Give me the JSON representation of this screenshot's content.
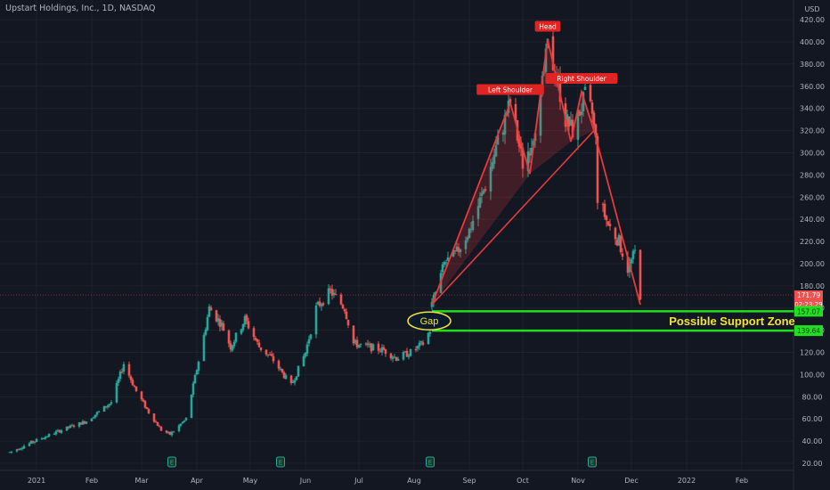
{
  "header": {
    "title": "Upstart Holdings, Inc., 1D, NASDAQ",
    "currency": "USD"
  },
  "colors": {
    "background": "#131722",
    "grid": "#1e222d",
    "up": "#26a69a",
    "down": "#ef5350",
    "pattern": "#e83a3a",
    "zone": "#22dd22",
    "zone_label": "#f0e33c",
    "axis_text": "#b2b5be"
  },
  "chart_data": {
    "type": "candlestick",
    "title": "Upstart Holdings, Inc., 1D, NASDAQ",
    "y_ticks": [
      20,
      40,
      60,
      80,
      100,
      120,
      140,
      160,
      180,
      200,
      220,
      240,
      260,
      280,
      300,
      320,
      340,
      360,
      380,
      400,
      420
    ],
    "ylim": [
      14,
      432
    ],
    "x_ticks": [
      "2021",
      "Feb",
      "Mar",
      "Apr",
      "May",
      "Jun",
      "Jul",
      "Aug",
      "Sep",
      "Oct",
      "Nov",
      "Dec",
      "2022",
      "Feb"
    ],
    "price_path": [
      [
        "2020-12-17",
        30
      ],
      [
        "2020-12-31",
        40
      ],
      [
        "2021-01-15",
        50
      ],
      [
        "2021-01-29",
        58
      ],
      [
        "2021-02-12",
        75
      ],
      [
        "2021-02-19",
        110
      ],
      [
        "2021-02-26",
        85
      ],
      [
        "2021-03-05",
        66
      ],
      [
        "2021-03-12",
        50
      ],
      [
        "2021-03-17",
        46
      ],
      [
        "2021-03-26",
        60
      ],
      [
        "2021-04-05",
        135
      ],
      [
        "2021-04-08",
        160
      ],
      [
        "2021-04-15",
        145
      ],
      [
        "2021-04-20",
        125
      ],
      [
        "2021-04-28",
        150
      ],
      [
        "2021-05-06",
        125
      ],
      [
        "2021-05-13",
        115
      ],
      [
        "2021-05-24",
        90
      ],
      [
        "2021-06-01",
        120
      ],
      [
        "2021-06-07",
        160
      ],
      [
        "2021-06-15",
        175
      ],
      [
        "2021-06-23",
        160
      ],
      [
        "2021-06-28",
        128
      ],
      [
        "2021-07-06",
        125
      ],
      [
        "2021-07-15",
        122
      ],
      [
        "2021-07-22",
        115
      ],
      [
        "2021-07-30",
        120
      ],
      [
        "2021-08-06",
        128
      ],
      [
        "2021-08-10",
        140
      ],
      [
        "2021-08-11",
        163
      ],
      [
        "2021-08-18",
        200
      ],
      [
        "2021-08-25",
        210
      ],
      [
        "2021-09-01",
        230
      ],
      [
        "2021-09-10",
        270
      ],
      [
        "2021-09-17",
        310
      ],
      [
        "2021-09-24",
        345
      ],
      [
        "2021-10-01",
        290
      ],
      [
        "2021-10-06",
        310
      ],
      [
        "2021-10-12",
        360
      ],
      [
        "2021-10-15",
        395
      ],
      [
        "2021-10-20",
        370
      ],
      [
        "2021-10-25",
        330
      ],
      [
        "2021-10-29",
        320
      ],
      [
        "2021-11-05",
        350
      ],
      [
        "2021-11-09",
        335
      ],
      [
        "2021-11-11",
        310
      ],
      [
        "2021-11-12",
        260
      ],
      [
        "2021-11-18",
        235
      ],
      [
        "2021-11-24",
        220
      ],
      [
        "2021-11-29",
        195
      ],
      [
        "2021-12-03",
        210
      ],
      [
        "2021-12-06",
        171.79
      ]
    ],
    "earnings_markers": [
      {
        "date": "2021-03-18",
        "label": "E"
      },
      {
        "date": "2021-05-18",
        "label": "E"
      },
      {
        "date": "2021-08-10",
        "label": "E"
      },
      {
        "date": "2021-11-09",
        "label": "E"
      }
    ],
    "pattern": {
      "type": "head-and-shoulders",
      "points": [
        [
          "2021-08-11",
          163
        ],
        [
          "2021-09-24",
          345
        ],
        [
          "2021-10-05",
          281
        ],
        [
          "2021-10-15",
          402
        ],
        [
          "2021-10-28",
          310
        ],
        [
          "2021-11-03",
          355
        ],
        [
          "2021-11-10",
          320
        ],
        [
          "2021-12-06",
          163
        ]
      ],
      "labels": [
        {
          "text": "Left Shoulder",
          "date": "2021-09-24",
          "value": 345
        },
        {
          "text": "Head",
          "date": "2021-10-15",
          "value": 402
        },
        {
          "text": "Right Shoulder",
          "date": "2021-11-03",
          "value": 355
        }
      ]
    },
    "support_zone": {
      "upper": 157.07,
      "lower": 139.64,
      "start_date": "2021-08-11",
      "label": "Possible Support Zone",
      "gap_label": "Gap"
    },
    "current_price": {
      "value": 171.79,
      "countdown": "02:23:29"
    },
    "price_tags": [
      "157.07",
      "139.64"
    ]
  }
}
